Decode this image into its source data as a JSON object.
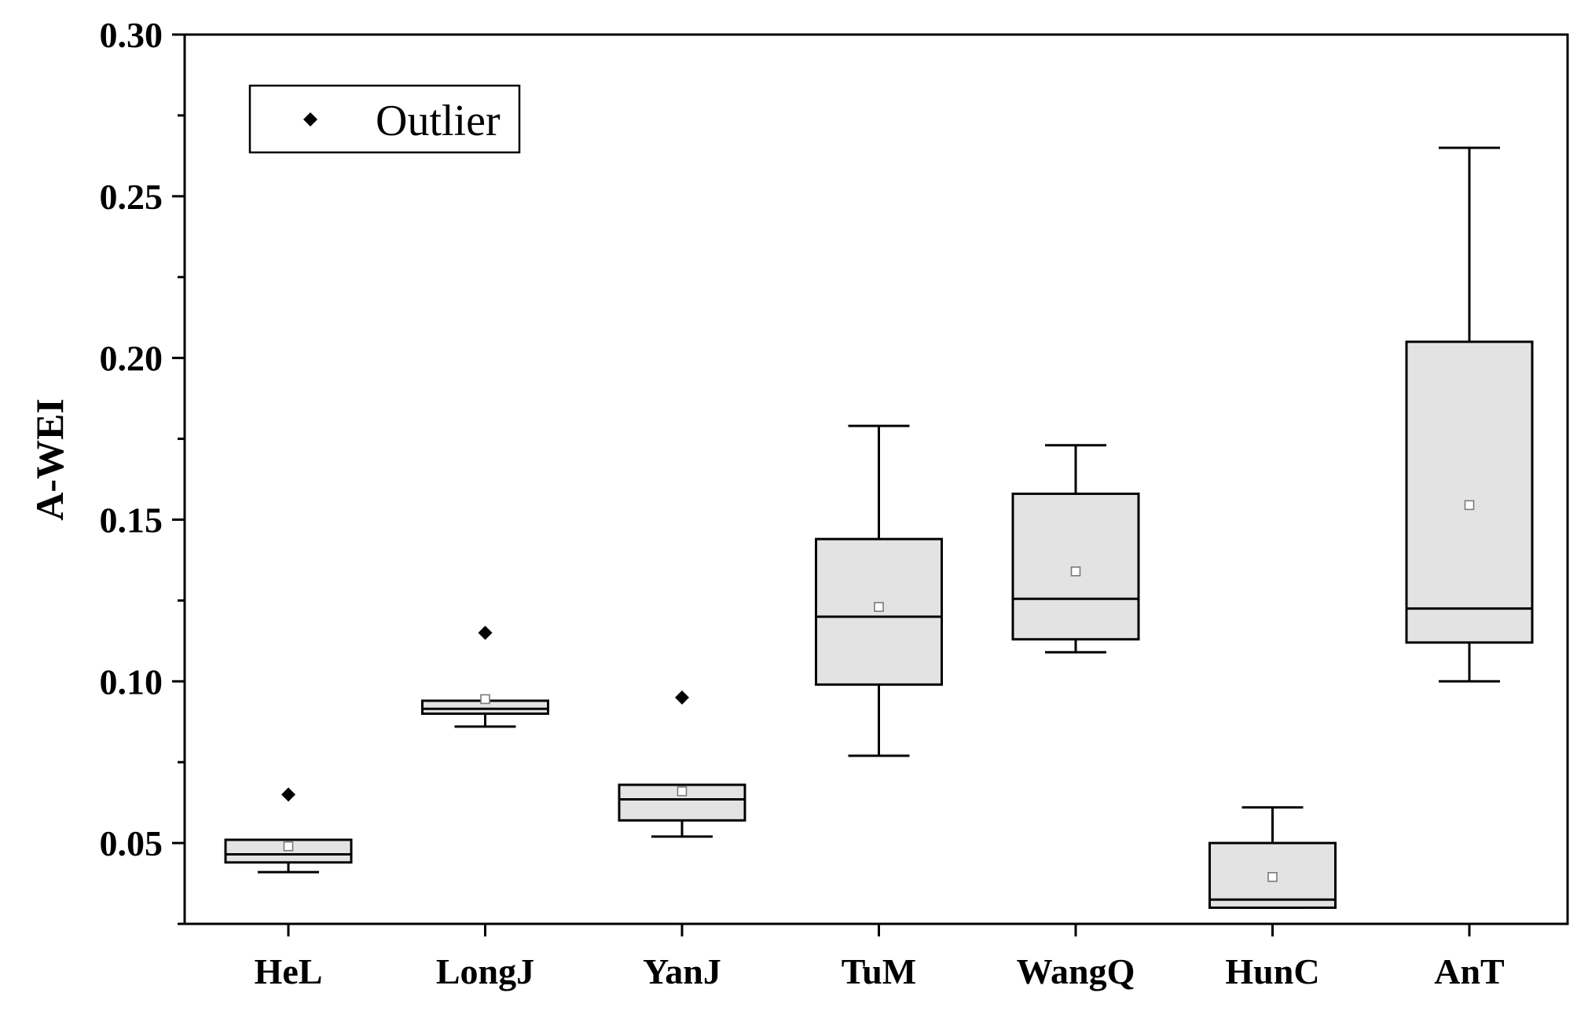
{
  "chart_data": {
    "type": "box",
    "ylabel": "A-WEI",
    "xlabel": "",
    "ylim": [
      0.025,
      0.3
    ],
    "yticks": [
      {
        "value": 0.05,
        "label": "0.05"
      },
      {
        "value": 0.1,
        "label": "0.10"
      },
      {
        "value": 0.15,
        "label": "0.15"
      },
      {
        "value": 0.2,
        "label": "0.20"
      },
      {
        "value": 0.25,
        "label": "0.25"
      },
      {
        "value": 0.3,
        "label": "0.30"
      }
    ],
    "categories": [
      "HeL",
      "LongJ",
      "YanJ",
      "TuM",
      "WangQ",
      "HunC",
      "AnT"
    ],
    "boxes": [
      {
        "name": "HeL",
        "whisker_low": 0.041,
        "q1": 0.044,
        "median": 0.0465,
        "q3": 0.051,
        "whisker_high": 0.051,
        "mean": 0.049,
        "outliers": [
          0.065
        ]
      },
      {
        "name": "LongJ",
        "whisker_low": 0.086,
        "q1": 0.09,
        "median": 0.0915,
        "q3": 0.094,
        "whisker_high": 0.094,
        "mean": 0.0945,
        "outliers": [
          0.115
        ]
      },
      {
        "name": "YanJ",
        "whisker_low": 0.052,
        "q1": 0.057,
        "median": 0.0635,
        "q3": 0.068,
        "whisker_high": 0.068,
        "mean": 0.066,
        "outliers": [
          0.095
        ]
      },
      {
        "name": "TuM",
        "whisker_low": 0.077,
        "q1": 0.099,
        "median": 0.12,
        "q3": 0.144,
        "whisker_high": 0.179,
        "mean": 0.123,
        "outliers": []
      },
      {
        "name": "WangQ",
        "whisker_low": 0.109,
        "q1": 0.113,
        "median": 0.1255,
        "q3": 0.158,
        "whisker_high": 0.173,
        "mean": 0.134,
        "outliers": []
      },
      {
        "name": "HunC",
        "whisker_low": 0.03,
        "q1": 0.03,
        "median": 0.0325,
        "q3": 0.05,
        "whisker_high": 0.061,
        "mean": 0.0395,
        "outliers": []
      },
      {
        "name": "AnT",
        "whisker_low": 0.1,
        "q1": 0.112,
        "median": 0.1225,
        "q3": 0.205,
        "whisker_high": 0.265,
        "mean": 0.1545,
        "outliers": []
      }
    ],
    "legend": {
      "label": "Outlier",
      "position": "top-left"
    },
    "grid": false,
    "colors": {
      "box_fill": "#e3e3e3",
      "line": "#000000",
      "mean_marker": "#7a7a7a"
    }
  }
}
